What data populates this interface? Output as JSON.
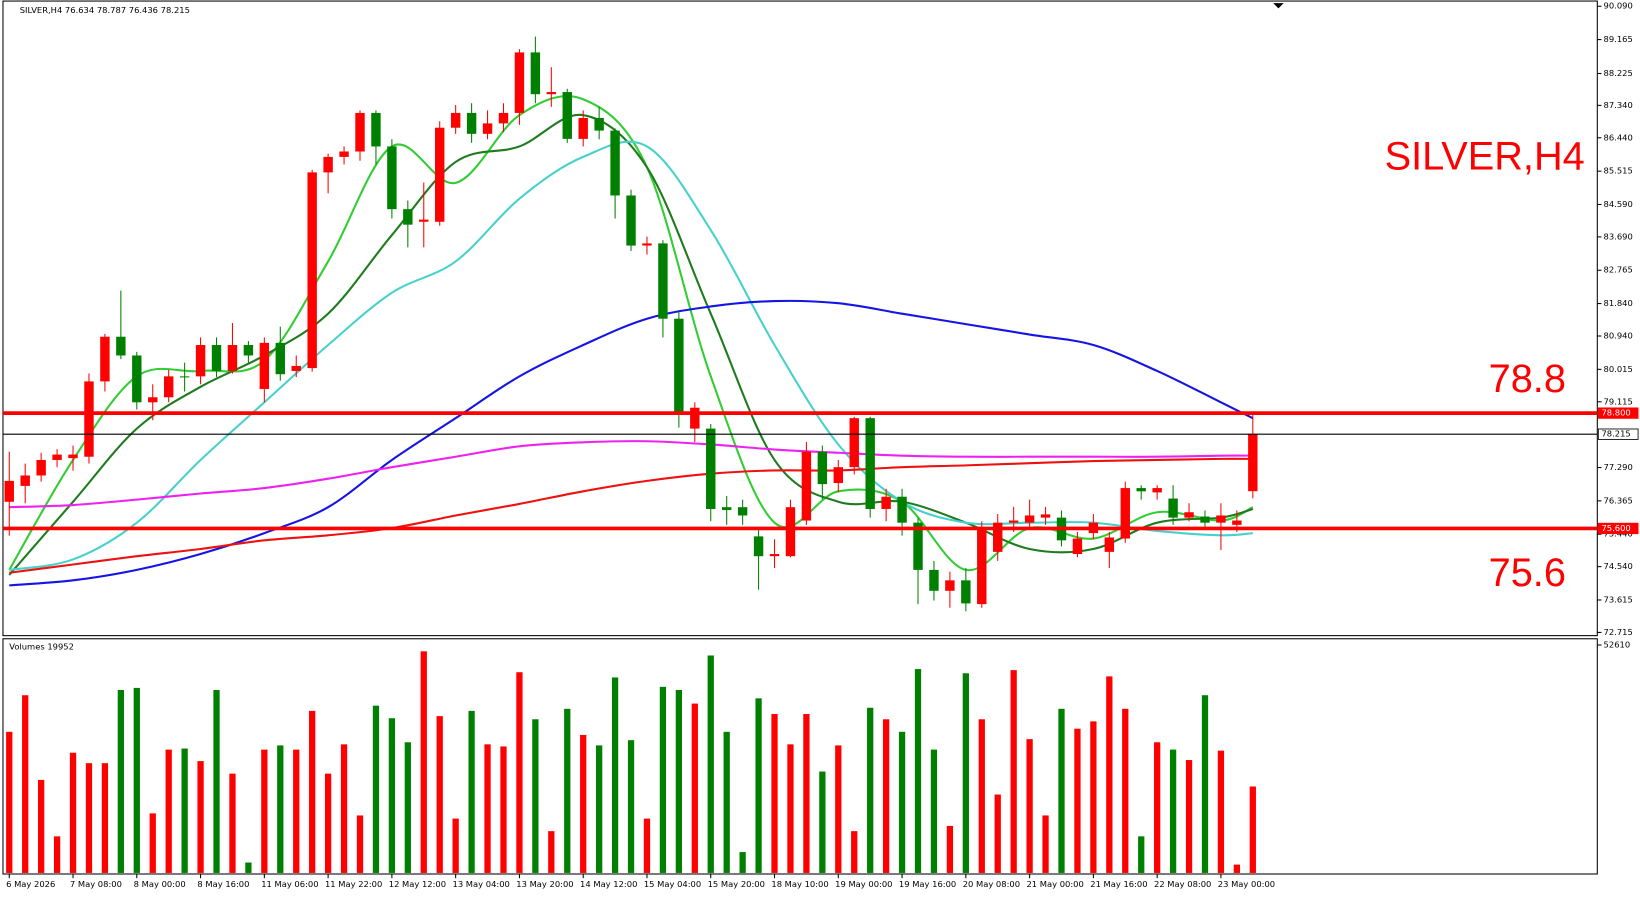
{
  "chart_data": [
    {
      "type": "candlestick",
      "title": "SILVER,H4  76.634 78.787 76.436 78.215",
      "annotation": "SILVER,H4",
      "annotation_color": "#ff0000",
      "up_color": "#ff0000",
      "down_color": "#008000",
      "categories": [
        "6 May 2026",
        null,
        null,
        null,
        "7 May 08:00",
        null,
        null,
        null,
        "8 May 00:00",
        null,
        null,
        null,
        "8 May 16:00",
        null,
        null,
        null,
        "11 May 06:00",
        null,
        null,
        null,
        "11 May 22:00",
        null,
        null,
        null,
        "12 May 12:00",
        null,
        null,
        null,
        "13 May 04:00",
        null,
        null,
        null,
        "13 May 20:00",
        null,
        null,
        null,
        "14 May 12:00",
        null,
        null,
        null,
        "15 May 04:00",
        null,
        null,
        null,
        "15 May 20:00",
        null,
        null,
        null,
        "18 May 10:00",
        null,
        null,
        null,
        "19 May 00:00",
        null,
        null,
        null,
        "19 May 16:00",
        null,
        null,
        null,
        "20 May 08:00",
        null,
        null,
        null,
        "21 May 00:00",
        null,
        null,
        null,
        "21 May 16:00",
        null,
        null,
        null,
        "22 May 08:00",
        null,
        null,
        null,
        "23 May 00:00",
        null,
        null
      ],
      "open": [
        76.34,
        76.78,
        77.07,
        77.5,
        77.55,
        77.59,
        79.68,
        80.92,
        80.4,
        79.1,
        79.24,
        79.82,
        79.82,
        80.69,
        79.97,
        80.69,
        79.47,
        80.75,
        79.97,
        80.05,
        85.48,
        85.91,
        86.06,
        87.13,
        86.2,
        84.46,
        84.11,
        84.11,
        86.72,
        87.13,
        86.55,
        86.84,
        87.13,
        88.81,
        87.65,
        87.71,
        86.41,
        86.99,
        86.64,
        84.84,
        83.45,
        83.51,
        81.42,
        78.37,
        78.37,
        76.19,
        76.19,
        75.38,
        74.83,
        74.83,
        75.82,
        77.73,
        76.86,
        77.3,
        78.66,
        76.14,
        76.48,
        75.76,
        74.45,
        73.87,
        74.16,
        73.5,
        74.95,
        75.76,
        75.76,
        75.9,
        75.9,
        74.89,
        75.47,
        74.95,
        75.32,
        76.72,
        76.6,
        76.43,
        75.9,
        75.93,
        75.76,
        75.7,
        76.634
      ],
      "high": [
        77.73,
        77.4,
        77.7,
        77.8,
        77.9,
        79.9,
        81.0,
        82.2,
        80.5,
        79.6,
        80.0,
        80.2,
        80.9,
        80.9,
        81.3,
        80.8,
        80.9,
        81.2,
        80.4,
        85.55,
        86.0,
        86.2,
        87.2,
        87.2,
        86.4,
        84.7,
        85.2,
        86.9,
        87.35,
        87.4,
        87.2,
        87.4,
        88.9,
        89.25,
        88.4,
        87.8,
        87.2,
        87.3,
        86.7,
        85.0,
        83.7,
        83.6,
        81.6,
        79.1,
        78.5,
        76.5,
        76.4,
        75.6,
        75.3,
        76.4,
        78.0,
        77.9,
        77.5,
        78.7,
        78.7,
        76.7,
        76.7,
        75.9,
        74.7,
        74.4,
        74.5,
        75.8,
        76.0,
        76.2,
        76.4,
        76.2,
        76.1,
        75.5,
        76.0,
        75.5,
        76.9,
        76.8,
        76.8,
        76.8,
        76.3,
        76.1,
        76.3,
        76.1,
        78.787
      ],
      "low": [
        75.4,
        76.3,
        76.9,
        77.3,
        77.2,
        77.4,
        79.4,
        80.3,
        78.9,
        78.6,
        79.1,
        79.4,
        79.6,
        79.8,
        79.9,
        80.2,
        79.1,
        79.7,
        79.8,
        79.95,
        84.9,
        85.7,
        85.8,
        85.7,
        84.2,
        83.4,
        83.4,
        84.0,
        86.55,
        86.3,
        86.4,
        86.6,
        86.8,
        87.4,
        87.3,
        86.3,
        86.2,
        86.4,
        84.2,
        83.3,
        83.2,
        80.9,
        78.4,
        78.0,
        75.8,
        75.7,
        75.7,
        73.9,
        74.5,
        74.8,
        75.7,
        76.4,
        76.6,
        77.1,
        75.9,
        75.8,
        75.4,
        73.5,
        73.6,
        73.4,
        73.3,
        73.4,
        74.7,
        75.5,
        75.6,
        75.7,
        75.1,
        74.8,
        75.3,
        74.5,
        75.2,
        76.4,
        76.4,
        75.7,
        75.8,
        75.6,
        75.0,
        75.5,
        76.436
      ],
      "close": [
        76.92,
        77.07,
        77.5,
        77.65,
        77.65,
        79.68,
        80.92,
        80.4,
        79.1,
        79.24,
        79.82,
        79.8,
        80.69,
        79.97,
        80.69,
        80.4,
        80.75,
        79.88,
        80.11,
        85.48,
        85.91,
        86.06,
        87.13,
        86.2,
        84.46,
        84.03,
        84.17,
        86.72,
        87.13,
        86.55,
        86.84,
        87.13,
        88.81,
        87.65,
        87.71,
        86.41,
        86.99,
        86.64,
        84.84,
        83.45,
        83.51,
        81.42,
        78.81,
        78.95,
        76.14,
        76.11,
        75.96,
        74.83,
        74.89,
        76.19,
        77.73,
        76.83,
        77.3,
        78.66,
        76.14,
        76.48,
        75.76,
        74.45,
        73.87,
        74.16,
        73.52,
        75.61,
        75.76,
        75.82,
        75.96,
        75.99,
        75.27,
        75.32,
        75.76,
        75.35,
        76.72,
        76.63,
        76.72,
        75.9,
        76.05,
        75.76,
        75.96,
        75.82,
        78.215
      ],
      "series": [
        {
          "color": "#32cd32",
          "x": [
            0,
            4,
            8,
            12,
            16,
            20,
            24,
            28,
            32,
            36,
            40,
            44,
            48,
            52,
            56,
            60,
            64,
            68,
            72,
            76,
            78
          ],
          "values": [
            74.45,
            77.5,
            79.82,
            79.97,
            80.26,
            83.01,
            86.2,
            85.19,
            87.07,
            87.51,
            85.62,
            79.82,
            75.76,
            76.63,
            76.34,
            74.45,
            75.61,
            75.32,
            76.05,
            75.82,
            76.19
          ]
        },
        {
          "color": "#1e7b1e",
          "x": [
            0,
            4,
            8,
            12,
            16,
            20,
            24,
            28,
            32,
            36,
            40,
            44,
            48,
            52,
            56,
            60,
            64,
            68,
            72,
            76,
            78
          ],
          "values": [
            74.31,
            76.34,
            78.37,
            79.53,
            80.4,
            81.56,
            83.74,
            85.77,
            86.2,
            87.07,
            85.62,
            81.56,
            77.5,
            76.34,
            76.34,
            75.76,
            75.03,
            75.03,
            75.76,
            75.9,
            76.14
          ]
        },
        {
          "color": "#48d1cc",
          "x": [
            0,
            4,
            8,
            12,
            16,
            20,
            24,
            28,
            32,
            36,
            40,
            44,
            48,
            52,
            56,
            60,
            64,
            68,
            72,
            76,
            78
          ],
          "values": [
            74.45,
            74.74,
            75.76,
            77.5,
            79.1,
            80.69,
            82.14,
            83.01,
            84.75,
            85.91,
            86.2,
            83.88,
            80.69,
            77.93,
            76.34,
            75.76,
            75.76,
            75.76,
            75.53,
            75.41,
            75.47
          ]
        },
        {
          "color": "#1414e6",
          "x": [
            0,
            4,
            8,
            12,
            16,
            20,
            24,
            28,
            32,
            36,
            40,
            44,
            48,
            52,
            56,
            60,
            64,
            68,
            72,
            76,
            78
          ],
          "values": [
            74.02,
            74.16,
            74.45,
            74.89,
            75.47,
            76.19,
            77.5,
            78.66,
            79.82,
            80.69,
            81.42,
            81.76,
            81.91,
            81.85,
            81.56,
            81.27,
            80.98,
            80.69,
            79.97,
            79.1,
            78.66
          ]
        },
        {
          "color": "#ee22ee",
          "x": [
            0,
            4,
            8,
            12,
            16,
            20,
            24,
            28,
            32,
            36,
            40,
            44,
            48,
            52,
            56,
            60,
            64,
            68,
            72,
            76,
            78
          ],
          "values": [
            76.19,
            76.25,
            76.4,
            76.57,
            76.72,
            76.98,
            77.3,
            77.59,
            77.88,
            77.99,
            78.02,
            77.93,
            77.79,
            77.7,
            77.62,
            77.59,
            77.59,
            77.59,
            77.59,
            77.62,
            77.62
          ]
        },
        {
          "color": "#ee1111",
          "x": [
            0,
            4,
            8,
            12,
            16,
            20,
            24,
            28,
            32,
            36,
            40,
            44,
            48,
            52,
            56,
            60,
            64,
            68,
            72,
            76,
            78
          ],
          "values": [
            74.37,
            74.6,
            74.83,
            75.03,
            75.27,
            75.41,
            75.61,
            75.96,
            76.28,
            76.63,
            76.92,
            77.12,
            77.21,
            77.21,
            77.3,
            77.35,
            77.41,
            77.47,
            77.5,
            77.53,
            77.53
          ]
        }
      ],
      "hlines": [
        {
          "value": 78.8,
          "label": "78.800",
          "color": "#ff0000",
          "role": "level",
          "annotation": "78.8"
        },
        {
          "value": 78.215,
          "label": "78.215",
          "color": "#000000",
          "role": "current"
        },
        {
          "value": 75.6,
          "label": "75.600",
          "color": "#ff0000",
          "role": "level",
          "annotation": "75.6"
        }
      ],
      "ylim": [
        72.64,
        90.2
      ],
      "yticks": [
        {
          "value": 90.09,
          "label": "90.090"
        },
        {
          "value": 89.165,
          "label": "89.165"
        },
        {
          "value": 88.225,
          "label": "88.225"
        },
        {
          "value": 87.34,
          "label": "87.340"
        },
        {
          "value": 86.44,
          "label": "86.440"
        },
        {
          "value": 85.515,
          "label": "85.515"
        },
        {
          "value": 84.59,
          "label": "84.590"
        },
        {
          "value": 83.69,
          "label": "83.690"
        },
        {
          "value": 82.765,
          "label": "82.765"
        },
        {
          "value": 81.84,
          "label": "81.840"
        },
        {
          "value": 80.94,
          "label": "80.940"
        },
        {
          "value": 80.015,
          "label": "80.015"
        },
        {
          "value": 79.115,
          "label": "79.115"
        },
        {
          "value": 77.29,
          "label": "77.290"
        },
        {
          "value": 76.365,
          "label": "76.365"
        },
        {
          "value": 75.44,
          "label": "75.440"
        },
        {
          "value": 74.54,
          "label": "74.540"
        },
        {
          "value": 73.615,
          "label": "73.615"
        },
        {
          "value": 72.715,
          "label": "72.715"
        }
      ]
    },
    {
      "type": "bar",
      "title": "Volumes 19952",
      "values": [
        32576,
        41021,
        21476,
        8446,
        27750,
        25337,
        25337,
        42228,
        42710,
        13754,
        28473,
        28715,
        25819,
        42228,
        22924,
        2413,
        28473,
        29439,
        28473,
        37402,
        22924,
        29680,
        13272,
        38608,
        35712,
        30163,
        51156,
        36195,
        12548,
        37402,
        29680,
        29197,
        46330,
        35471,
        9652,
        37884,
        31852,
        29439,
        45123,
        30645,
        12548,
        42951,
        42228,
        39091,
        50190,
        32576,
        4826,
        40297,
        36678,
        29680,
        36678,
        23406,
        29439,
        9652,
        38125,
        35471,
        32576,
        47054,
        28473,
        10859,
        46088,
        35471,
        18098,
        46812,
        30886,
        13272,
        37884,
        33299,
        34989,
        45364,
        37884,
        8446,
        30163,
        28473,
        26060,
        41021,
        28232,
        1930,
        19952
      ],
      "ylim": [
        0,
        54000
      ],
      "yticks": [
        52610
      ]
    }
  ]
}
